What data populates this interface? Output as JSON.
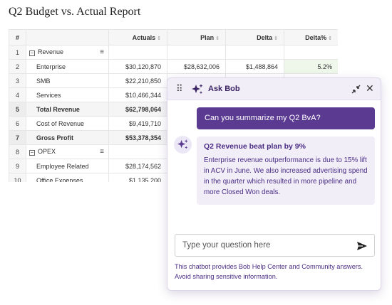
{
  "report": {
    "title": "Q2 Budget vs. Actual Report",
    "columns": [
      {
        "label": "#",
        "sort_icon": ""
      },
      {
        "label": "",
        "sort_icon": ""
      },
      {
        "label": "Actuals",
        "sort_icon": "⇕"
      },
      {
        "label": "Plan",
        "sort_icon": "⇕"
      },
      {
        "label": "Delta",
        "sort_icon": "⇕"
      },
      {
        "label": "Delta%",
        "sort_icon": "⇕"
      }
    ],
    "rows": [
      {
        "num": "1",
        "name": "Revenue",
        "actuals": "",
        "plan": "",
        "delta": "",
        "delta_pct": "",
        "group": true,
        "bold": false
      },
      {
        "num": "2",
        "name": "Enterprise",
        "actuals": "$30,120,870",
        "plan": "$28,632,006",
        "delta": "$1,488,864",
        "delta_pct": "5.2%",
        "group": false,
        "bold": false
      },
      {
        "num": "3",
        "name": "SMB",
        "actuals": "$22,210,850",
        "plan": "",
        "delta": "",
        "delta_pct": "",
        "group": false,
        "bold": false
      },
      {
        "num": "4",
        "name": "Services",
        "actuals": "$10,466,344",
        "plan": "",
        "delta": "",
        "delta_pct": "",
        "group": false,
        "bold": false
      },
      {
        "num": "5",
        "name": "Total Revenue",
        "actuals": "$62,798,064",
        "plan": "",
        "delta": "",
        "delta_pct": "",
        "group": false,
        "bold": true
      },
      {
        "num": "6",
        "name": "Cost of Revenue",
        "actuals": "$9,419,710",
        "plan": "",
        "delta": "",
        "delta_pct": "",
        "group": false,
        "bold": false
      },
      {
        "num": "7",
        "name": "Gross Profit",
        "actuals": "$53,378,354",
        "plan": "",
        "delta": "",
        "delta_pct": "",
        "group": false,
        "bold": true
      },
      {
        "num": "8",
        "name": "OPEX",
        "actuals": "",
        "plan": "",
        "delta": "",
        "delta_pct": "",
        "group": true,
        "bold": false
      },
      {
        "num": "9",
        "name": "Employee Related",
        "actuals": "$28,174,562",
        "plan": "",
        "delta": "",
        "delta_pct": "",
        "group": false,
        "bold": false
      },
      {
        "num": "10",
        "name": "Office Expenses",
        "actuals": "$1,135,200",
        "plan": "",
        "delta": "",
        "delta_pct": "",
        "group": false,
        "bold": false
      }
    ]
  },
  "chat": {
    "title": "Ask Bob",
    "user_message": "Can you summarize my Q2 BvA?",
    "bot_heading": "Q2 Revenue beat plan by 9%",
    "bot_body": "Enterprise revenue outperformance is due to 15% lift in ACV in June. We also increased advertising spend in the quarter which resulted in more pipeline and more Closed Won deals.",
    "input_placeholder": "Type your question here",
    "disclaimer": "This chatbot provides Bob Help Center and Community answers. Avoid sharing sensitive information.",
    "drag_glyph": "⠿",
    "close_glyph": "✕",
    "accent_color": "#5b3b91"
  },
  "icons": {
    "toggle_minus": "−",
    "row_menu": "≡"
  }
}
